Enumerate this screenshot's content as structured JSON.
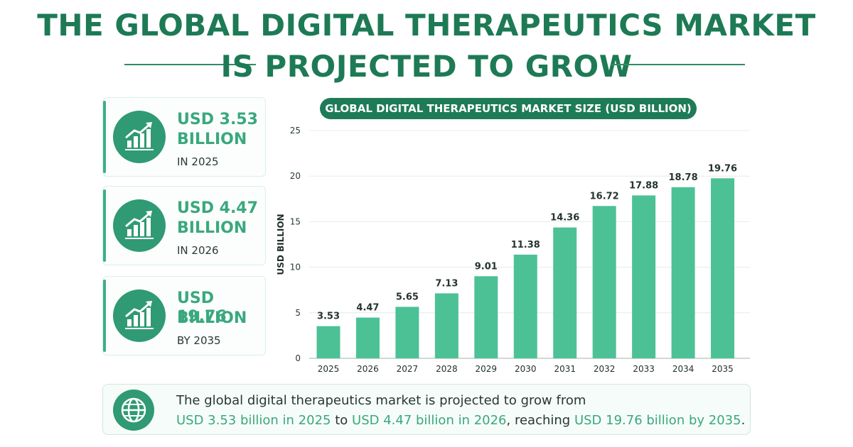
{
  "header": {
    "title_line1": "THE GLOBAL DIGITAL THERAPEUTICS MARKET",
    "title_line2": "IS PROJECTED TO GROW"
  },
  "cards": [
    {
      "value_line1": "USD 3.53",
      "value_line2": "BILLION",
      "sub": "IN 2025",
      "icon": "growth-chart-icon"
    },
    {
      "value_line1": "USD 4.47",
      "value_line2": "BILLION",
      "sub": "IN 2026",
      "icon": "growth-chart-icon"
    },
    {
      "value_line1": "USD 19.76",
      "value_line2": "BILLION",
      "sub": "BY 2035",
      "icon": "growth-chart-icon"
    }
  ],
  "chart_data": {
    "type": "bar",
    "title": "GLOBAL DIGITAL THERAPEUTICS MARKET SIZE (USD BILLION)",
    "ylabel": "USD BILLION",
    "xlabel": "",
    "categories": [
      "2025",
      "2026",
      "2027",
      "2028",
      "2029",
      "2030",
      "2031",
      "2032",
      "2033",
      "2034",
      "2035"
    ],
    "values": [
      3.53,
      4.47,
      5.65,
      7.13,
      9.01,
      11.38,
      14.36,
      16.72,
      17.88,
      18.78,
      19.76
    ],
    "value_labels": [
      "3.53",
      "4.47",
      "5.65",
      "7.13",
      "9.01",
      "11.38",
      "14.36",
      "16.72",
      "17.88",
      "18.78",
      "19.76"
    ],
    "ylim": [
      0,
      25
    ],
    "yticks": [
      "0",
      "5",
      "10",
      "15",
      "20",
      "25"
    ],
    "grid": true,
    "bar_color": "#4cc196"
  },
  "footer": {
    "icon": "globe-icon",
    "line1": "The global digital therapeutics market is projected to grow from",
    "line2_part1": "USD 3.53 billion in 2025",
    "line2_part2": " to ",
    "line2_part3": "USD 4.47 billion in 2026",
    "line2_part4": ", reaching ",
    "line2_part5": "USD 19.76 billion by 2035",
    "line2_part6": "."
  }
}
